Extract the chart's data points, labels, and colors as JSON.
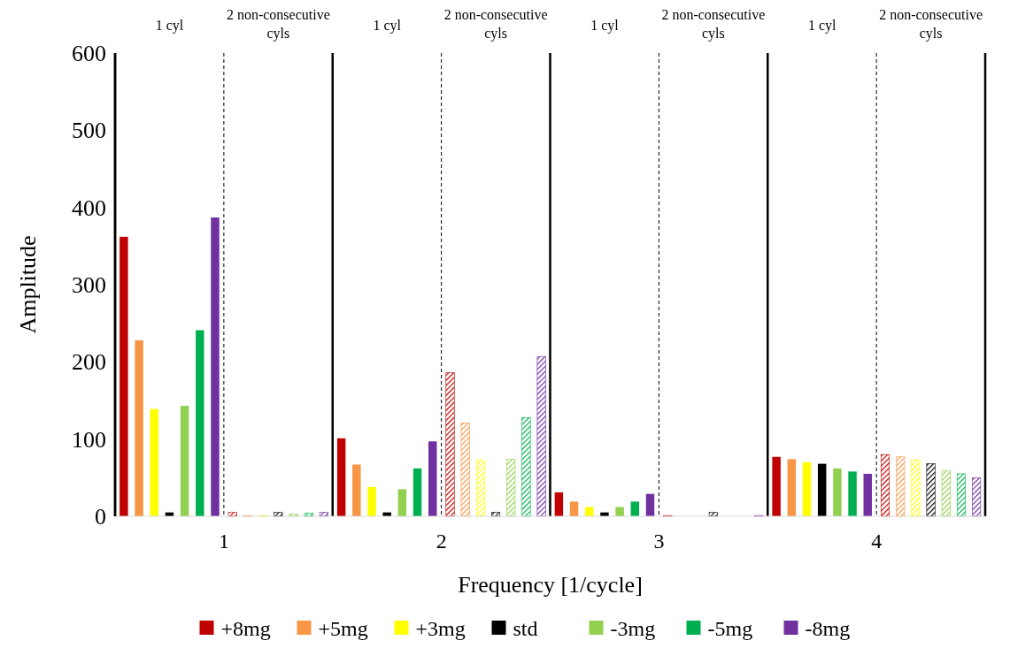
{
  "chart_data": {
    "type": "bar",
    "xlabel": "Frequency [1/cycle]",
    "ylabel": "Amplitude",
    "categories": [
      "1",
      "2",
      "3",
      "4"
    ],
    "ylim": [
      0,
      600
    ],
    "yticks": [
      0,
      100,
      200,
      300,
      400,
      500,
      600
    ],
    "grid": "x",
    "legend": "bottom",
    "annotations": [
      "1 cyl",
      "2 non-consecutive cyls",
      "1 cyl",
      "2 non-consecutive cyls",
      "1 cyl",
      "2 non-consecutive cyls",
      "1 cyl",
      "2 non-consecutive cyls"
    ],
    "series": [
      {
        "name": "+8mg",
        "color": "#c00000",
        "values": [
          362,
          101,
          31,
          77
        ]
      },
      {
        "name": "+5mg",
        "color": "#f79646",
        "values": [
          228,
          67,
          19,
          74
        ]
      },
      {
        "name": "+3mg",
        "color": "#ffff00",
        "values": [
          139,
          38,
          12,
          70
        ]
      },
      {
        "name": "std",
        "color": "#000000",
        "values": [
          5,
          5,
          5,
          68
        ]
      },
      {
        "name": "-3mg",
        "color": "#92d050",
        "values": [
          143,
          35,
          12,
          62
        ]
      },
      {
        "name": "-5mg",
        "color": "#00b050",
        "values": [
          241,
          62,
          19,
          58
        ]
      },
      {
        "name": "-8mg",
        "color": "#7030a0",
        "values": [
          387,
          97,
          29,
          55
        ]
      },
      {
        "color": "#c00000",
        "values": [
          5,
          186,
          1,
          80
        ]
      },
      {
        "color": "#f79646",
        "values": [
          1,
          121,
          0,
          77
        ]
      },
      {
        "color": "#ffff00",
        "values": [
          1,
          73,
          0,
          73
        ]
      },
      {
        "color": "#000000",
        "values": [
          5,
          5,
          5,
          68
        ]
      },
      {
        "color": "#92d050",
        "values": [
          3,
          74,
          0,
          59
        ]
      },
      {
        "color": "#00b050",
        "values": [
          4,
          128,
          0,
          55
        ]
      },
      {
        "color": "#7030a0",
        "values": [
          5,
          207,
          1,
          50
        ]
      }
    ]
  }
}
